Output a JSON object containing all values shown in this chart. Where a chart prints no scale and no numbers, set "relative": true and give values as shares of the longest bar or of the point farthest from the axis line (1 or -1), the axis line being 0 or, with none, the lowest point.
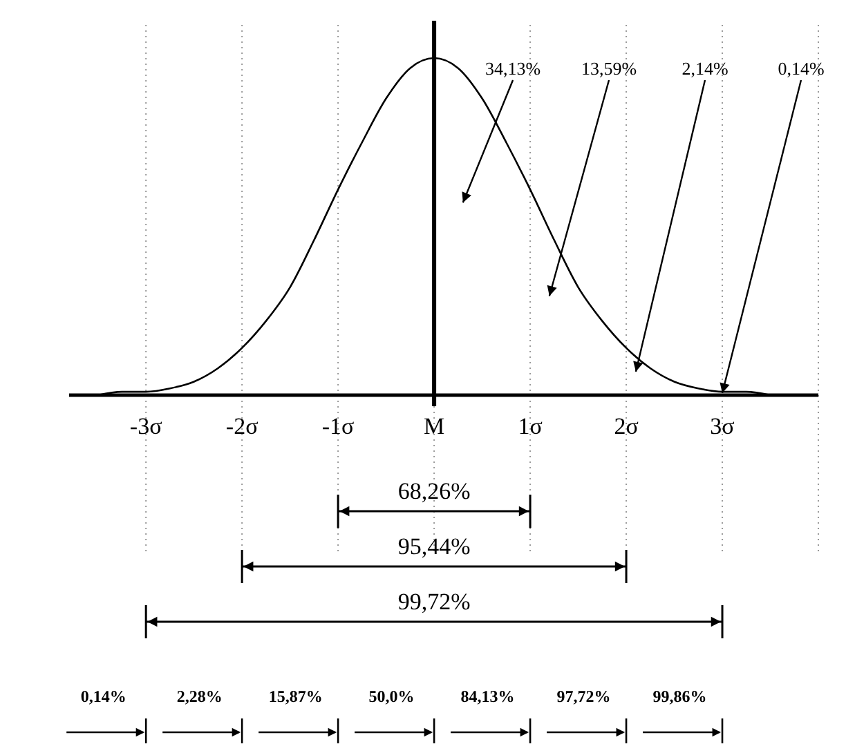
{
  "chart_data": {
    "type": "line",
    "relative": true,
    "grid": "x",
    "marker": "none",
    "line_style": "solid",
    "xlim": [
      -3.8,
      4.0
    ],
    "xticks": [
      {
        "value": -3,
        "label": "-3σ"
      },
      {
        "value": -2,
        "label": "-2σ"
      },
      {
        "value": -1,
        "label": "-1σ"
      },
      {
        "value": 0,
        "label": "M"
      },
      {
        "value": 1,
        "label": "1σ"
      },
      {
        "value": 2,
        "label": "2σ"
      },
      {
        "value": 3,
        "label": "3σ"
      },
      {
        "value": 4,
        "label": null
      }
    ],
    "series": [
      {
        "color": "#000000",
        "x": [
          -3.5,
          -3.25,
          -3,
          -2.75,
          -2.5,
          -2.25,
          -2,
          -1.75,
          -1.5,
          -1.25,
          -1,
          -0.75,
          -0.5,
          -0.25,
          0,
          0.25,
          0.5,
          0.75,
          1,
          1.25,
          1.5,
          1.75,
          2,
          2.25,
          2.5,
          2.75,
          3,
          3.25,
          3.5
        ],
        "values": [
          0,
          0.01,
          0.01,
          0.02,
          0.04,
          0.08,
          0.14,
          0.22,
          0.32,
          0.46,
          0.61,
          0.75,
          0.88,
          0.97,
          1,
          0.97,
          0.88,
          0.75,
          0.61,
          0.46,
          0.32,
          0.22,
          0.14,
          0.08,
          0.04,
          0.02,
          0.01,
          0.01,
          0
        ]
      }
    ],
    "ref_lines": [
      {
        "axis": "x",
        "value": 0,
        "color": "#000000"
      }
    ],
    "annotations": [
      "34,13%",
      "13,59%",
      "2,14%",
      "0,14%",
      "68,26%",
      "95,44%",
      "99,72%",
      "0,14%",
      "2,28%",
      "15,87%",
      "50,0%",
      "84,13%",
      "97,72%",
      "99,86%"
    ]
  }
}
